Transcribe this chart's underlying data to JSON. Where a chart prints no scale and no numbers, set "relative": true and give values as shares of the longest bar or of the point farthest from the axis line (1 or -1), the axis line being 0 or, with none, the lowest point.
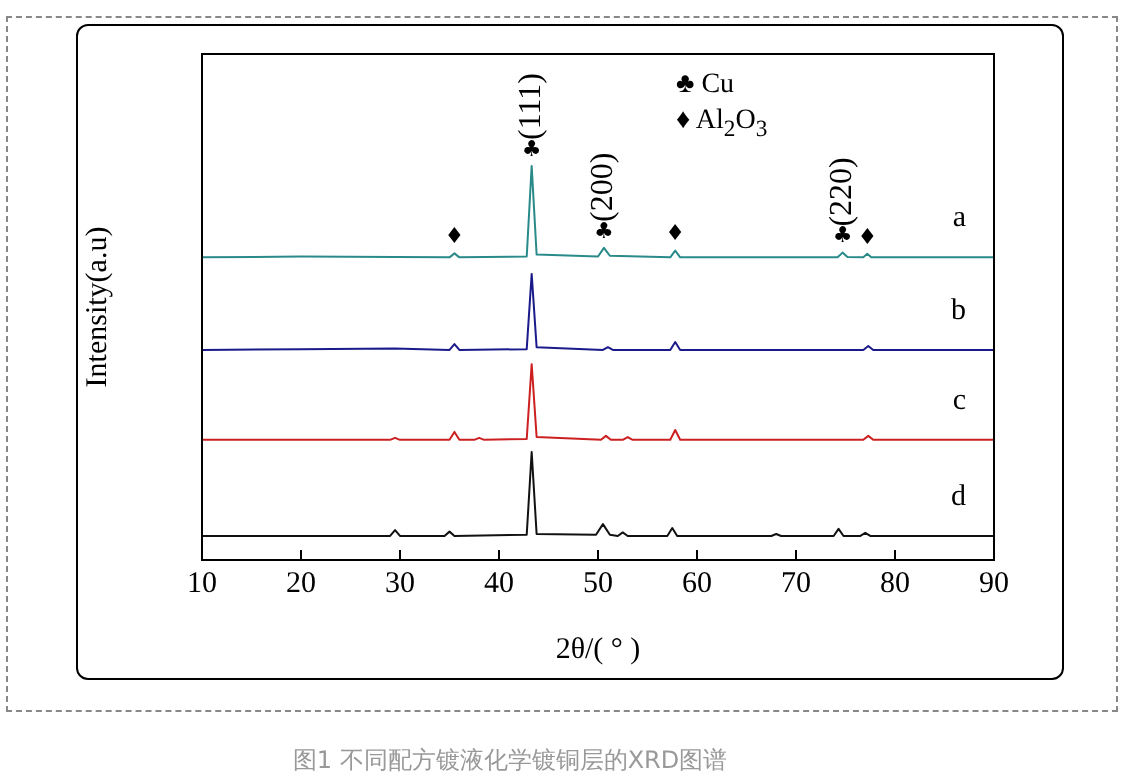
{
  "chart_data": {
    "type": "line",
    "relative": true,
    "xlabel": "2θ/( ° )",
    "ylabel": "Intensity(a.u)",
    "xlim": [
      10,
      90
    ],
    "xticks": [
      10,
      20,
      30,
      40,
      50,
      60,
      70,
      80,
      90
    ],
    "tick_labels": "x",
    "grid": false,
    "legend": false,
    "marker": "none",
    "line_style": "solid",
    "series": [
      {
        "name": "a",
        "color": "#2a8a8a",
        "x": [
          10,
          20,
          29.5,
          35,
          35.5,
          36,
          42.8,
          43.3,
          43.8,
          50,
          50.6,
          51.2,
          57.3,
          57.8,
          58.3,
          74.2,
          74.7,
          75.2,
          76.8,
          77.2,
          77.6,
          90
        ],
        "values": [
          0.768,
          0.77,
          0.769,
          0.768,
          0.778,
          0.768,
          0.77,
          1.0,
          0.775,
          0.77,
          0.792,
          0.772,
          0.768,
          0.785,
          0.768,
          0.768,
          0.78,
          0.769,
          0.768,
          0.777,
          0.768,
          0.768
        ]
      },
      {
        "name": "b",
        "color": "#1a1a8a",
        "x": [
          10,
          20,
          29.5,
          35,
          35.5,
          36,
          42.8,
          43.3,
          43.8,
          50.5,
          51,
          51.5,
          57.3,
          57.8,
          58.3,
          76.8,
          77.3,
          77.8,
          90
        ],
        "values": [
          0.533,
          0.535,
          0.537,
          0.533,
          0.548,
          0.533,
          0.535,
          0.726,
          0.54,
          0.533,
          0.54,
          0.533,
          0.533,
          0.553,
          0.533,
          0.533,
          0.543,
          0.533,
          0.533
        ]
      },
      {
        "name": "c",
        "color": "#cc2020",
        "x": [
          10,
          29,
          29.5,
          30,
          35,
          35.5,
          36,
          37.5,
          38,
          38.5,
          42.8,
          43.3,
          43.8,
          50.3,
          50.8,
          51.3,
          52.5,
          53,
          53.5,
          57.3,
          57.8,
          58.3,
          76.8,
          77.3,
          77.8,
          90
        ],
        "values": [
          0.305,
          0.305,
          0.31,
          0.305,
          0.305,
          0.325,
          0.305,
          0.305,
          0.31,
          0.305,
          0.307,
          0.497,
          0.312,
          0.305,
          0.315,
          0.305,
          0.305,
          0.312,
          0.305,
          0.305,
          0.33,
          0.305,
          0.305,
          0.315,
          0.305,
          0.305
        ]
      },
      {
        "name": "d",
        "color": "#111111",
        "x": [
          10,
          29,
          29.5,
          30,
          34.5,
          35,
          35.5,
          42.8,
          43.3,
          43.8,
          49.8,
          50.5,
          51.2,
          52,
          52.5,
          53,
          57,
          57.5,
          58,
          67.5,
          68,
          68.5,
          73.8,
          74.3,
          74.8,
          76.5,
          77,
          77.5,
          90
        ],
        "values": [
          0.061,
          0.061,
          0.076,
          0.061,
          0.061,
          0.072,
          0.061,
          0.064,
          0.274,
          0.066,
          0.064,
          0.091,
          0.064,
          0.061,
          0.07,
          0.061,
          0.061,
          0.081,
          0.061,
          0.061,
          0.066,
          0.061,
          0.061,
          0.079,
          0.061,
          0.061,
          0.069,
          0.061,
          0.061
        ]
      }
    ],
    "annotations": [
      {
        "text": "♦",
        "x": 35.5,
        "y": 0.778
      },
      {
        "text": "♣",
        "x": 43.3,
        "y": 1.0
      },
      {
        "text": "(111)",
        "x": 43.3,
        "y": 1.0
      },
      {
        "text": "♣",
        "x": 50.6,
        "y": 0.792
      },
      {
        "text": "(200)",
        "x": 50.6,
        "y": 0.792
      },
      {
        "text": "♦",
        "x": 57.8,
        "y": 0.785
      },
      {
        "text": "♣",
        "x": 74.7,
        "y": 0.78
      },
      {
        "text": "(220)",
        "x": 74.7,
        "y": 0.78
      },
      {
        "text": "♦",
        "x": 77.2,
        "y": 0.777
      },
      "♣ Cu",
      "♦ Al$_{2}$O$_{3}$",
      "图1 不同配方镀液化学镀铜层的XRD图谱"
    ]
  }
}
